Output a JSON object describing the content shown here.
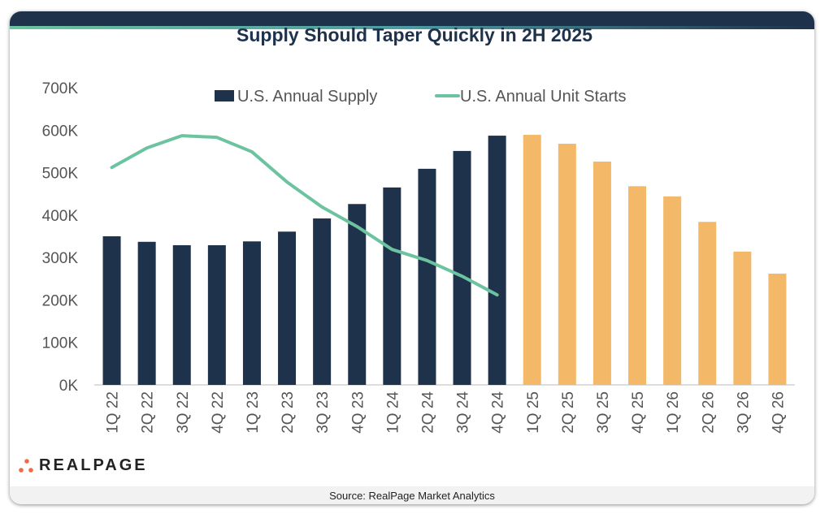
{
  "title": "Supply Should Taper Quickly in 2H 2025",
  "source": "Source: RealPage Market Analytics",
  "logo_text": "REALPAGE",
  "colors": {
    "supply_actual": "#1e324c",
    "supply_forecast": "#f4b968",
    "starts_line": "#6cc3a0",
    "header": "#1e324c"
  },
  "chart_data": {
    "type": "bar",
    "title": "Supply Should Taper Quickly in 2H 2025",
    "categories": [
      "1Q 22",
      "2Q 22",
      "3Q 22",
      "4Q 22",
      "1Q 23",
      "2Q 23",
      "3Q 23",
      "4Q 23",
      "1Q 24",
      "2Q 24",
      "3Q 24",
      "4Q 24",
      "1Q 25",
      "2Q 25",
      "3Q 25",
      "4Q 25",
      "1Q 26",
      "2Q 26",
      "3Q 26",
      "4Q 26"
    ],
    "ylim": [
      0,
      700000
    ],
    "yticks": [
      "0K",
      "100K",
      "200K",
      "300K",
      "400K",
      "500K",
      "600K",
      "700K"
    ],
    "grid": false,
    "legend_placement": "top",
    "forecast_from": "1Q 25",
    "series": [
      {
        "name": "U.S. Annual Supply",
        "type": "bar",
        "values": [
          350000,
          337000,
          329000,
          329000,
          338000,
          361000,
          392000,
          426000,
          465000,
          509000,
          551000,
          587000,
          589000,
          568000,
          526000,
          468000,
          444000,
          384000,
          314000,
          262000
        ]
      },
      {
        "name": "U.S. Annual Unit Starts",
        "type": "line",
        "values": [
          512000,
          558000,
          587000,
          583000,
          549000,
          478000,
          419000,
          373000,
          319000,
          293000,
          256000,
          212000,
          null,
          null,
          null,
          null,
          null,
          null,
          null,
          null
        ]
      }
    ]
  }
}
